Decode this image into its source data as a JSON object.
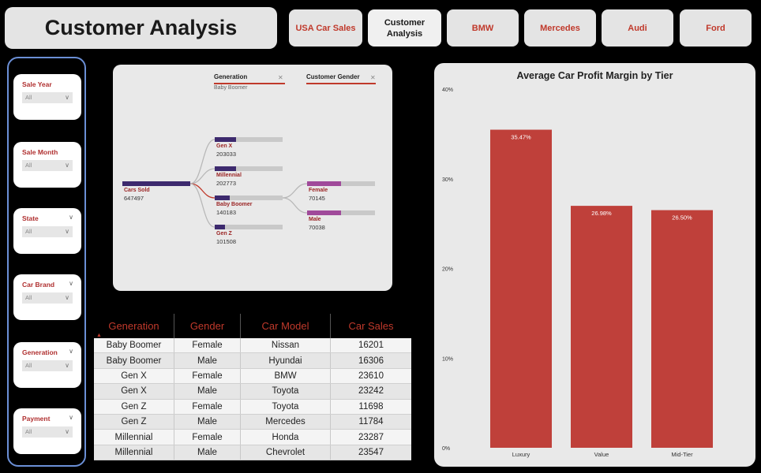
{
  "header": {
    "title": "Customer Analysis"
  },
  "nav": [
    {
      "label": "USA Car Sales",
      "active": false
    },
    {
      "label": "Customer Analysis",
      "active": true
    },
    {
      "label": "BMW",
      "active": false
    },
    {
      "label": "Mercedes",
      "active": false
    },
    {
      "label": "Audi",
      "active": false
    },
    {
      "label": "Ford",
      "active": false
    }
  ],
  "slicers": [
    {
      "label": "Sale Year",
      "value": "All",
      "has_top_chevron": false
    },
    {
      "label": "Sale Month",
      "value": "All",
      "has_top_chevron": false
    },
    {
      "label": "State",
      "value": "All",
      "has_top_chevron": true
    },
    {
      "label": "Car Brand",
      "value": "All",
      "has_top_chevron": true
    },
    {
      "label": "Generation",
      "value": "All",
      "has_top_chevron": true
    },
    {
      "label": "Payment",
      "value": "All",
      "has_top_chevron": true
    }
  ],
  "decomposition_tree": {
    "levels": [
      {
        "name": "Generation",
        "selected": "Baby Boomer"
      },
      {
        "name": "Customer Gender",
        "selected": ""
      }
    ],
    "root": {
      "label": "Cars Sold",
      "value": 647497
    },
    "generation_nodes": [
      {
        "label": "Gen X",
        "value": 203033
      },
      {
        "label": "Millennial",
        "value": 202773
      },
      {
        "label": "Baby Boomer",
        "value": 140183
      },
      {
        "label": "Gen Z",
        "value": 101508
      }
    ],
    "gender_nodes": [
      {
        "label": "Female",
        "value": 70145
      },
      {
        "label": "Male",
        "value": 70038
      }
    ],
    "colors": {
      "generation_bar": "#3d2a6e",
      "gender_bar": "#a04a9a",
      "track": "#c9c9c9",
      "link": "#b8b8b8",
      "link_active": "#c0392b"
    }
  },
  "table": {
    "columns": [
      "Generation",
      "Gender",
      "Car Model",
      "Car Sales"
    ],
    "rows": [
      [
        "Baby Boomer",
        "Female",
        "Nissan",
        "16201"
      ],
      [
        "Baby Boomer",
        "Male",
        "Hyundai",
        "16306"
      ],
      [
        "Gen X",
        "Female",
        "BMW",
        "23610"
      ],
      [
        "Gen X",
        "Male",
        "Toyota",
        "23242"
      ],
      [
        "Gen Z",
        "Female",
        "Toyota",
        "11698"
      ],
      [
        "Gen Z",
        "Male",
        "Mercedes",
        "11784"
      ],
      [
        "Millennial",
        "Female",
        "Honda",
        "23287"
      ],
      [
        "Millennial",
        "Male",
        "Chevrolet",
        "23547"
      ]
    ]
  },
  "chart_data": {
    "type": "bar",
    "title": "Average Car Profit Margin by Tier",
    "categories": [
      "Luxury",
      "Value",
      "Mid-Tier"
    ],
    "values": [
      35.47,
      26.98,
      26.5
    ],
    "data_labels": [
      "35.47%",
      "26.98%",
      "26.50%"
    ],
    "y_ticks": [
      "0%",
      "10%",
      "20%",
      "30%",
      "40%"
    ],
    "ylim": [
      0,
      40
    ],
    "bar_color": "#bf403a",
    "grid": false
  }
}
